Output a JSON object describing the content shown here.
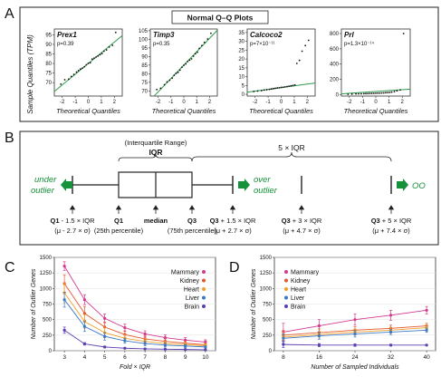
{
  "panel_labels": {
    "A": "A",
    "B": "B",
    "C": "C",
    "D": "D"
  },
  "colors": {
    "qq_line": "#2e9a4a",
    "outlier_green": "#16923a",
    "Mammary": "#d23a8f",
    "Kidney": "#e4572e",
    "Heart": "#f0a027",
    "Liver": "#3a78c8",
    "Brain": "#5b3fb0"
  },
  "chart_data": [
    {
      "type": "scatter",
      "title": "Prex1",
      "annotation": "p=0.39",
      "xlabel": "Theoretical Quantiles",
      "ylabel": "",
      "xlim": [
        -2.6,
        2.6
      ],
      "ylim": [
        63,
        98
      ],
      "xticks": [
        "-2",
        "-1",
        "0",
        "1",
        "2"
      ],
      "yticks": [
        "70",
        "75",
        "80",
        "85",
        "90",
        "95"
      ],
      "ytick_values": [
        70,
        75,
        80,
        85,
        90,
        95
      ],
      "line": {
        "slope": 5.6,
        "intercept": 80
      },
      "x": [
        -2.1,
        -1.8,
        -1.5,
        -1.3,
        -1.1,
        -0.9,
        -0.75,
        -0.6,
        -0.45,
        -0.3,
        -0.15,
        0,
        0.15,
        0.3,
        0.45,
        0.6,
        0.75,
        0.9,
        1.05,
        1.2,
        1.4,
        1.6,
        1.85,
        2.1
      ],
      "y": [
        69.2,
        71.5,
        71.8,
        73.2,
        74.3,
        75.5,
        76.3,
        77.1,
        77.6,
        78.3,
        79.3,
        80.1,
        80.4,
        82.3,
        82.8,
        83.4,
        83.9,
        84.6,
        85.2,
        86.4,
        87.1,
        88.6,
        89.5,
        96.2
      ]
    },
    {
      "type": "scatter",
      "title": "Timp3",
      "annotation": "p=0.35",
      "xlabel": "Theoretical Quantiles",
      "ylabel": "",
      "xlim": [
        -2.6,
        2.6
      ],
      "ylim": [
        67,
        106
      ],
      "xticks": [
        "-2",
        "-1",
        "0",
        "1",
        "2"
      ],
      "yticks": [
        "70",
        "75",
        "80",
        "85",
        "90",
        "95",
        "100",
        "105"
      ],
      "ytick_values": [
        70,
        75,
        80,
        85,
        90,
        95,
        100,
        105
      ],
      "line": {
        "slope": 7.8,
        "intercept": 85
      },
      "x": [
        -2.1,
        -1.8,
        -1.5,
        -1.3,
        -1.1,
        -0.9,
        -0.75,
        -0.6,
        -0.45,
        -0.3,
        -0.15,
        0,
        0.15,
        0.3,
        0.45,
        0.6,
        0.75,
        0.9,
        1.05,
        1.2,
        1.4,
        1.6,
        1.85,
        2.1
      ],
      "y": [
        70.8,
        71.5,
        73.6,
        75.2,
        76.2,
        77.4,
        79.1,
        80.2,
        80.8,
        82.1,
        83.8,
        84.9,
        85.7,
        87.1,
        87.9,
        88.6,
        90.2,
        91.6,
        92.5,
        94.7,
        96.4,
        98.2,
        100.2,
        103.5
      ]
    },
    {
      "type": "scatter",
      "title": "Calcoco2",
      "annotation": "p=7×10⁻¹¹",
      "xlabel": "Theoretical Quantiles",
      "ylabel": "",
      "xlim": [
        -2.6,
        2.6
      ],
      "ylim": [
        -1,
        37
      ],
      "xticks": [
        "-2",
        "-1",
        "0",
        "1",
        "2"
      ],
      "yticks": [
        "0",
        "5",
        "10",
        "15",
        "20",
        "25",
        "30",
        "35"
      ],
      "ytick_values": [
        0,
        5,
        10,
        15,
        20,
        25,
        30,
        35
      ],
      "line": {
        "slope": 1.0,
        "intercept": 3.8
      },
      "x": [
        -2.1,
        -1.8,
        -1.5,
        -1.3,
        -1.1,
        -0.9,
        -0.75,
        -0.6,
        -0.45,
        -0.3,
        -0.15,
        0,
        0.15,
        0.3,
        0.45,
        0.6,
        0.75,
        0.9,
        1.05,
        1.2,
        1.4,
        1.6,
        1.85,
        2.1
      ],
      "y": [
        1.6,
        1.9,
        2.1,
        2.4,
        2.6,
        2.8,
        3.0,
        3.2,
        3.4,
        3.6,
        3.7,
        3.9,
        4.0,
        4.2,
        4.4,
        4.6,
        4.8,
        5.0,
        5.3,
        17.5,
        19.2,
        24.4,
        27.6,
        30.6
      ]
    },
    {
      "type": "scatter",
      "title": "Prl",
      "annotation": "p=1.3×10⁻¹⁴",
      "xlabel": "Theoretical Quantiles",
      "ylabel": "",
      "xlim": [
        -2.6,
        2.6
      ],
      "ylim": [
        -20,
        860
      ],
      "xticks": [
        "-2",
        "-1",
        "0",
        "1",
        "2"
      ],
      "yticks": [
        "0",
        "200",
        "400",
        "600",
        "800"
      ],
      "ytick_values": [
        0,
        200,
        400,
        600,
        800
      ],
      "line": {
        "slope": 12,
        "intercept": 40
      },
      "x": [
        -2.1,
        -1.8,
        -1.5,
        -1.3,
        -1.1,
        -0.9,
        -0.75,
        -0.6,
        -0.45,
        -0.3,
        -0.15,
        0,
        0.15,
        0.3,
        0.45,
        0.6,
        0.75,
        0.9,
        1.05,
        1.2,
        1.4,
        1.6,
        1.85,
        2.1
      ],
      "y": [
        4,
        6,
        8,
        9,
        10,
        11,
        12,
        13,
        14,
        15,
        16,
        17,
        18,
        19,
        20,
        22,
        24,
        26,
        28,
        32,
        38,
        48,
        60,
        800
      ]
    },
    {
      "type": "line",
      "xlabel": "Fold × IQR",
      "ylabel": "Number of Outlier Genes",
      "x": [
        3,
        4,
        5,
        6,
        7,
        8,
        9,
        10
      ],
      "xlim": [
        2.5,
        10.5
      ],
      "ylim": [
        0,
        1500
      ],
      "yticks": [
        "0",
        "250",
        "500",
        "750",
        "1000",
        "1250",
        "1500"
      ],
      "ytick_values": [
        0,
        250,
        500,
        750,
        1000,
        1250,
        1500
      ],
      "legend_position": "top-right",
      "series": [
        {
          "name": "Mammary",
          "values": [
            1360,
            820,
            520,
            370,
            270,
            210,
            170,
            140
          ],
          "errors": [
            70,
            80,
            70,
            60,
            50,
            45,
            40,
            35
          ]
        },
        {
          "name": "Kidney",
          "values": [
            1080,
            600,
            380,
            260,
            190,
            150,
            120,
            95
          ],
          "errors": [
            140,
            110,
            80,
            60,
            45,
            40,
            35,
            30
          ]
        },
        {
          "name": "Heart",
          "values": [
            930,
            470,
            290,
            200,
            150,
            115,
            95,
            80
          ],
          "errors": [
            160,
            110,
            80,
            55,
            45,
            35,
            30,
            25
          ]
        },
        {
          "name": "Liver",
          "values": [
            820,
            390,
            230,
            160,
            115,
            90,
            75,
            60
          ],
          "errors": [
            120,
            80,
            60,
            40,
            35,
            30,
            25,
            20
          ]
        },
        {
          "name": "Brain",
          "values": [
            330,
            110,
            60,
            40,
            30,
            25,
            20,
            15
          ],
          "errors": [
            50,
            20,
            15,
            10,
            8,
            6,
            5,
            5
          ]
        }
      ]
    },
    {
      "type": "line",
      "xlabel": "Number of Sampled Individuals",
      "ylabel": "Number of Outlier Genes",
      "x": [
        8,
        16,
        24,
        32,
        40
      ],
      "xlim": [
        6,
        42
      ],
      "ylim": [
        0,
        1500
      ],
      "yticks": [
        "0",
        "250",
        "500",
        "750",
        "1000",
        "1250",
        "1500"
      ],
      "ytick_values": [
        0,
        250,
        500,
        750,
        1000,
        1250,
        1500
      ],
      "legend_position": "top-left",
      "series": [
        {
          "name": "Mammary",
          "values": [
            300,
            400,
            500,
            570,
            650
          ],
          "errors": [
            140,
            100,
            90,
            80,
            60
          ]
        },
        {
          "name": "Kidney",
          "values": [
            250,
            290,
            330,
            360,
            400
          ],
          "errors": [
            80,
            60,
            55,
            50,
            40
          ]
        },
        {
          "name": "Heart",
          "values": [
            220,
            260,
            300,
            330,
            370
          ],
          "errors": [
            70,
            55,
            50,
            45,
            40
          ]
        },
        {
          "name": "Liver",
          "values": [
            200,
            240,
            270,
            300,
            330
          ],
          "errors": [
            70,
            55,
            50,
            40,
            35
          ]
        },
        {
          "name": "Brain",
          "values": [
            100,
            90,
            90,
            90,
            90
          ],
          "errors": [
            50,
            25,
            20,
            15,
            10
          ]
        }
      ]
    }
  ],
  "panel_a": {
    "title": "Normal Q–Q Plots",
    "ylabel": "Sample Quantiles (TPM)"
  },
  "panel_b": {
    "iqr_note": "(Interquartile Range)",
    "iqr": "IQR",
    "five_iqr": "5 × IQR",
    "under": "under",
    "outlier": "outlier",
    "over": "over",
    "oo": "OO",
    "labels": [
      {
        "main_bold": "Q1",
        "main_rest": " - 1.5 × IQR",
        "sub": "(μ - 2.7 × σ)"
      },
      {
        "main_bold": "Q1",
        "main_rest": "",
        "sub": "(25th percentile)"
      },
      {
        "main_bold": "median",
        "main_rest": "",
        "sub": ""
      },
      {
        "main_bold": "Q3",
        "main_rest": "",
        "sub": "(75th percentile)"
      },
      {
        "main_bold": "Q3",
        "main_rest": " + 1.5 × IQR",
        "sub": "(μ + 2.7 × σ)"
      },
      {
        "main_bold": "Q3",
        "main_rest": " + 3 × IQR",
        "sub": "(μ + 4.7 × σ)"
      },
      {
        "main_bold": "Q3",
        "main_rest": " + 5 × IQR",
        "sub": "(μ + 7.4 × σ)"
      }
    ]
  }
}
